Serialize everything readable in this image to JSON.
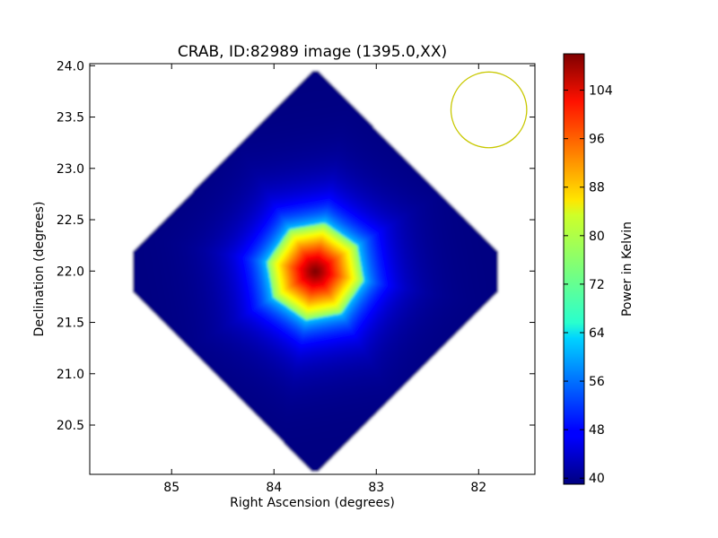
{
  "chart_data": {
    "type": "heatmap",
    "title": "CRAB, ID:82989 image (1395.0,XX)",
    "xlabel": "Right Ascension (degrees)",
    "ylabel": "Declination (degrees)",
    "colorbar_label": "Power in Kelvin",
    "xlim": [
      85.8,
      81.45
    ],
    "ylim": [
      20.02,
      24.02
    ],
    "x_ticks": [
      {
        "value": 85,
        "label": "85"
      },
      {
        "value": 84,
        "label": "84"
      },
      {
        "value": 83,
        "label": "83"
      },
      {
        "value": 82,
        "label": "82"
      }
    ],
    "y_ticks": [
      {
        "value": 20.5,
        "label": "20.5"
      },
      {
        "value": 21.0,
        "label": "21.0"
      },
      {
        "value": 21.5,
        "label": "21.5"
      },
      {
        "value": 22.0,
        "label": "22.0"
      },
      {
        "value": 22.5,
        "label": "22.5"
      },
      {
        "value": 23.0,
        "label": "23.0"
      },
      {
        "value": 23.5,
        "label": "23.5"
      },
      {
        "value": 24.0,
        "label": "24.0"
      }
    ],
    "colorbar_range": [
      39,
      110
    ],
    "colorbar_ticks": [
      {
        "value": 40,
        "label": "40"
      },
      {
        "value": 48,
        "label": "48"
      },
      {
        "value": 56,
        "label": "56"
      },
      {
        "value": 64,
        "label": "64"
      },
      {
        "value": 72,
        "label": "72"
      },
      {
        "value": 80,
        "label": "80"
      },
      {
        "value": 88,
        "label": "88"
      },
      {
        "value": 96,
        "label": "96"
      },
      {
        "value": 104,
        "label": "104"
      }
    ],
    "colormap": "jet",
    "map": {
      "center": {
        "ra": 83.6,
        "dec": 22.0
      },
      "half_extent_deg": 1.98,
      "background_kelvin": 39,
      "peak_kelvin": 110,
      "source_halfwidth_deg": 0.45,
      "halo_width_deg": 0.55
    },
    "beam": {
      "ra": 81.9,
      "dec": 23.57,
      "radius_deg": 0.37,
      "color": "#c8c800"
    }
  }
}
